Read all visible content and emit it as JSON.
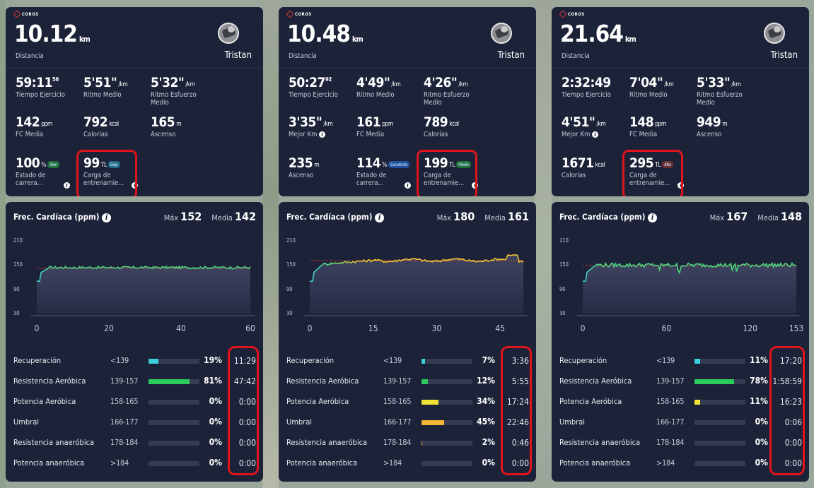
{
  "colors": {
    "recuperacion": "#3ccfdc",
    "resistencia_aerobica": "#2ccc5c",
    "potencia_aerobica": "#f2e234",
    "umbral": "#f2b634",
    "resistencia_anaerobica": "#f08a3a",
    "potencia_anaerobica": "#e0383a",
    "card_bg": "#1c2238",
    "highlight": "#e0141c"
  },
  "brand": "COROS",
  "panels": [
    {
      "summary": {
        "distance": "10.12",
        "distance_unit": "km",
        "distance_label": "Distancia",
        "user": "Tristan",
        "rows": [
          [
            {
              "label": "Tiempo Ejercicio",
              "value": "59:11",
              "sup": "56",
              "unit": ""
            },
            {
              "label": "Ritmo Medio",
              "value": "5'51\"",
              "unit": "/km"
            },
            {
              "label": "Ritmo Esfuerzo Medio",
              "value": "5'32\"",
              "unit": "/km"
            }
          ],
          [
            {
              "label": "FC Media",
              "value": "142",
              "unit": "ppm"
            },
            {
              "label": "Calorías",
              "value": "792",
              "unit": "kcal"
            },
            {
              "label": "Ascenso",
              "value": "165",
              "unit": "m"
            }
          ],
          [
            {
              "label": "Estado de carrera...",
              "value": "100",
              "unit": "%",
              "badge": "Bien",
              "badge_color": "#1f6e3c",
              "info": true
            },
            {
              "label": "Carga de entrenamie...",
              "value": "99",
              "unit": "TL",
              "badge": "Bajo",
              "badge_color": "#1f6a86",
              "info": true,
              "highlight": true
            }
          ]
        ]
      },
      "hr": {
        "title": "Frec. Cardíaca (ppm)",
        "max_label": "Máx",
        "max": "152",
        "avg_label": "Media",
        "avg": "142",
        "y_ticks": [
          "210",
          "150",
          "90",
          "30"
        ],
        "x_ticks": [
          {
            "label": "0",
            "v": 0
          },
          {
            "label": "20",
            "v": 20
          },
          {
            "label": "40",
            "v": 40
          },
          {
            "label": "60",
            "v": 60
          }
        ],
        "x_max": 59.2,
        "line_color": "#4cd67a",
        "avg_line": 142,
        "zones": [
          {
            "name": "Recuperación",
            "range": "<139",
            "pct": "19%",
            "fill": 0.19,
            "time": "11:29",
            "color": "#3ccfdc"
          },
          {
            "name": "Resistencia Aeróbica",
            "range": "139-157",
            "pct": "81%",
            "fill": 0.81,
            "time": "47:42",
            "color": "#2ccc5c"
          },
          {
            "name": "Potencia Aeróbica",
            "range": "158-165",
            "pct": "0%",
            "fill": 0,
            "time": "0:00",
            "color": "#f2e234"
          },
          {
            "name": "Umbral",
            "range": "166-177",
            "pct": "0%",
            "fill": 0,
            "time": "0:00",
            "color": "#f2b634"
          },
          {
            "name": "Resistencia anaeróbica",
            "range": "178-184",
            "pct": "0%",
            "fill": 0,
            "time": "0:00",
            "color": "#f08a3a"
          },
          {
            "name": "Potencia anaeróbica",
            "range": ">184",
            "pct": "0%",
            "fill": 0,
            "time": "0:00",
            "color": "#e0383a"
          }
        ]
      }
    },
    {
      "summary": {
        "distance": "10.48",
        "distance_unit": "km",
        "distance_label": "Distancia",
        "user": "Tristan",
        "rows": [
          [
            {
              "label": "Tiempo Ejercicio",
              "value": "50:27",
              "sup": "92",
              "unit": ""
            },
            {
              "label": "Ritmo Medio",
              "value": "4'49\"",
              "unit": "/km"
            },
            {
              "label": "Ritmo Esfuerzo Medio",
              "value": "4'26\"",
              "unit": "/km"
            }
          ],
          [
            {
              "label": "Mejor Km",
              "value": "3'35\"",
              "unit": "/km",
              "info": true
            },
            {
              "label": "FC Media",
              "value": "161",
              "unit": "ppm"
            },
            {
              "label": "Calorías",
              "value": "789",
              "unit": "kcal"
            }
          ],
          [
            {
              "label": "Ascenso",
              "value": "235",
              "unit": "m"
            },
            {
              "label": "Estado de carrera...",
              "value": "114",
              "unit": "%",
              "badge": "Excelente",
              "badge_color": "#1f4f9a",
              "info": true
            },
            {
              "label": "Carga de entrenamie...",
              "value": "199",
              "unit": "TL",
              "badge": "Medio",
              "badge_color": "#1f6e3c",
              "info": true,
              "highlight": true
            }
          ]
        ]
      },
      "hr": {
        "title": "Frec. Cardíaca (ppm)",
        "max_label": "Máx",
        "max": "180",
        "avg_label": "Media",
        "avg": "161",
        "y_ticks": [
          "210",
          "150",
          "90",
          "30"
        ],
        "x_ticks": [
          {
            "label": "0",
            "v": 0
          },
          {
            "label": "15",
            "v": 15
          },
          {
            "label": "30",
            "v": 30
          },
          {
            "label": "45",
            "v": 45
          }
        ],
        "x_max": 50.5,
        "line_color": "#f2c234",
        "avg_line": 161,
        "zones": [
          {
            "name": "Recuperación",
            "range": "<139",
            "pct": "7%",
            "fill": 0.07,
            "time": "3:36",
            "color": "#3ccfdc"
          },
          {
            "name": "Resistencia Aeróbica",
            "range": "139-157",
            "pct": "12%",
            "fill": 0.12,
            "time": "5:55",
            "color": "#2ccc5c"
          },
          {
            "name": "Potencia Aeróbica",
            "range": "158-165",
            "pct": "34%",
            "fill": 0.34,
            "time": "17:24",
            "color": "#f2e234"
          },
          {
            "name": "Umbral",
            "range": "166-177",
            "pct": "45%",
            "fill": 0.45,
            "time": "22:46",
            "color": "#f2b634"
          },
          {
            "name": "Resistencia anaeróbica",
            "range": "178-184",
            "pct": "2%",
            "fill": 0.02,
            "time": "0:46",
            "color": "#f08a3a"
          },
          {
            "name": "Potencia anaeróbica",
            "range": ">184",
            "pct": "0%",
            "fill": 0,
            "time": "0:00",
            "color": "#e0383a"
          }
        ]
      }
    },
    {
      "summary": {
        "distance": "21.64",
        "distance_unit": "km",
        "distance_label": "Distancia",
        "user": "Tristan",
        "rows": [
          [
            {
              "label": "Tiempo Ejercicio",
              "value": "2:32:49",
              "unit": ""
            },
            {
              "label": "Ritmo Medio",
              "value": "7'04\"",
              "unit": "/km"
            },
            {
              "label": "Ritmo Esfuerzo Medio",
              "value": "5'33\"",
              "unit": "/km"
            }
          ],
          [
            {
              "label": "Mejor Km",
              "value": "4'51\"",
              "unit": "/km",
              "info": true
            },
            {
              "label": "FC Media",
              "value": "148",
              "unit": "ppm"
            },
            {
              "label": "Ascenso",
              "value": "949",
              "unit": "m"
            }
          ],
          [
            {
              "label": "Calorías",
              "value": "1671",
              "unit": "kcal"
            },
            {
              "label": "Carga de entrenamie...",
              "value": "295",
              "unit": "TL",
              "badge": "Alto",
              "badge_color": "#6a3030",
              "info": true,
              "highlight": true
            }
          ]
        ]
      },
      "hr": {
        "title": "Frec. Cardíaca (ppm)",
        "max_label": "Máx",
        "max": "167",
        "avg_label": "Media",
        "avg": "148",
        "y_ticks": [
          "210",
          "150",
          "90",
          "30"
        ],
        "x_ticks": [
          {
            "label": "0",
            "v": 0
          },
          {
            "label": "60",
            "v": 60
          },
          {
            "label": "120",
            "v": 120
          },
          {
            "label": "153",
            "v": 153
          }
        ],
        "x_max": 153,
        "line_color": "#4cd67a",
        "avg_line": 148,
        "zones": [
          {
            "name": "Recuperación",
            "range": "<139",
            "pct": "11%",
            "fill": 0.11,
            "time": "17:20",
            "color": "#3ccfdc"
          },
          {
            "name": "Resistencia Aeróbica",
            "range": "139-157",
            "pct": "78%",
            "fill": 0.78,
            "time": "1:58:59",
            "color": "#2ccc5c"
          },
          {
            "name": "Potencia Aeróbica",
            "range": "158-165",
            "pct": "11%",
            "fill": 0.11,
            "time": "16:23",
            "color": "#f2e234"
          },
          {
            "name": "Umbral",
            "range": "166-177",
            "pct": "0%",
            "fill": 0,
            "time": "0:06",
            "color": "#f2b634"
          },
          {
            "name": "Resistencia anaeróbica",
            "range": "178-184",
            "pct": "0%",
            "fill": 0,
            "time": "0:00",
            "color": "#f08a3a"
          },
          {
            "name": "Potencia anaeróbica",
            "range": ">184",
            "pct": "0%",
            "fill": 0,
            "time": "0:00",
            "color": "#e0383a"
          }
        ]
      }
    }
  ]
}
